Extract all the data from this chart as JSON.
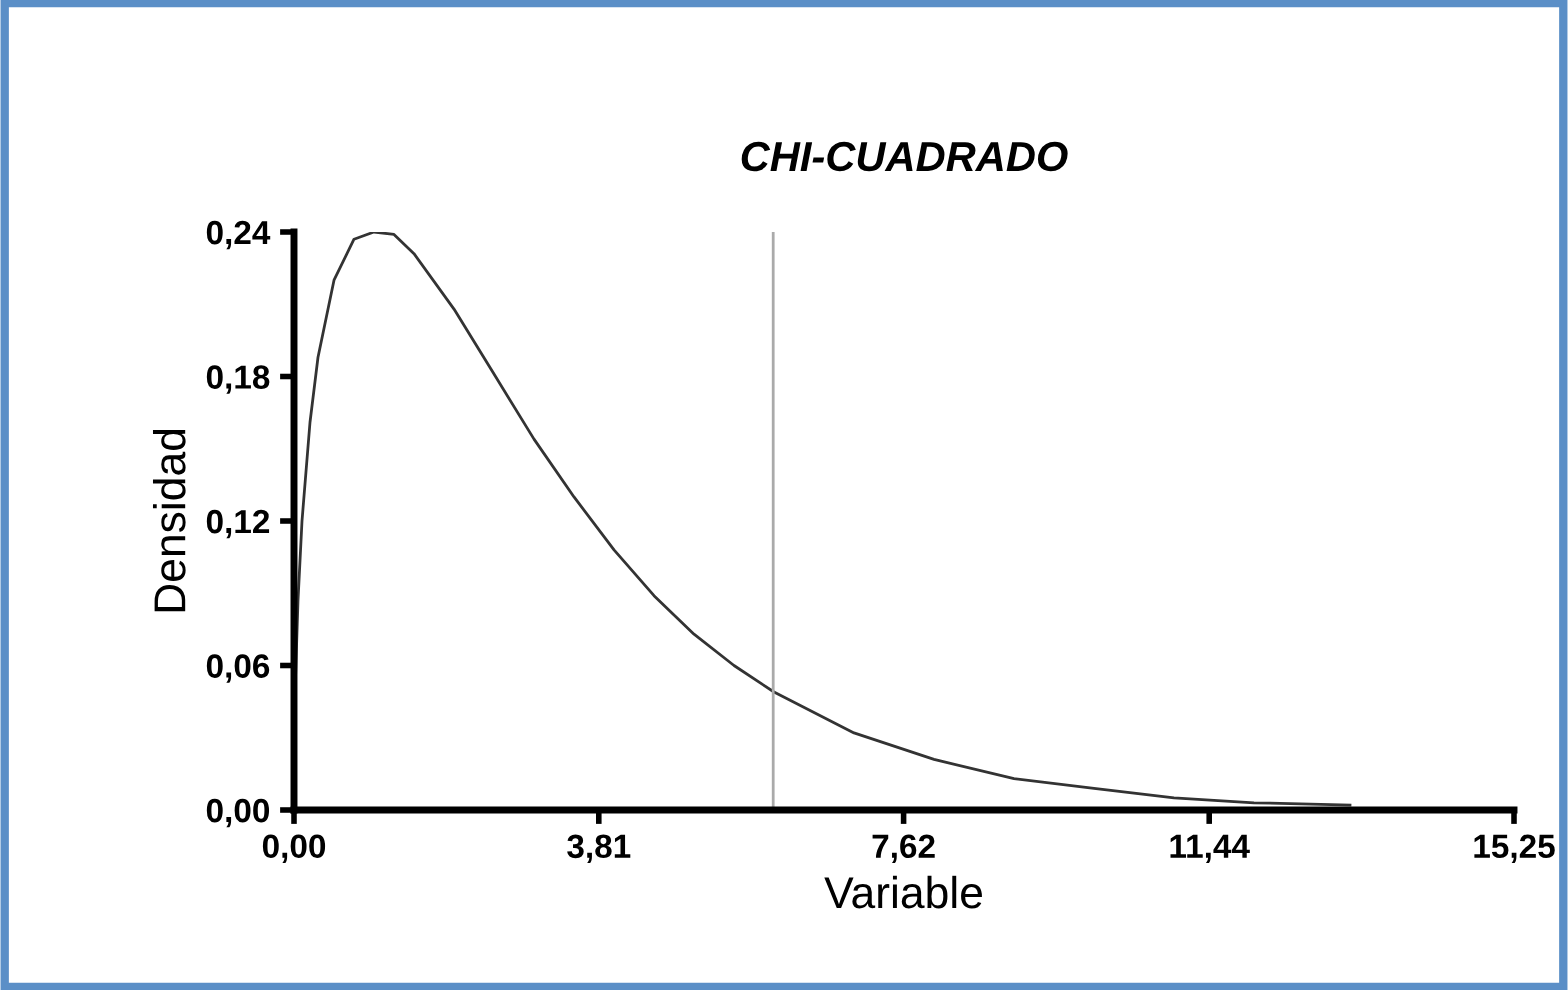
{
  "chart_data": {
    "type": "line",
    "title": "CHI-CUADRADO",
    "xlabel": "Variable",
    "ylabel": "Densidad",
    "x": [
      0.01,
      0.02,
      0.05,
      0.1,
      0.2,
      0.3,
      0.5,
      0.75,
      1.0,
      1.25,
      1.5,
      2,
      2.5,
      3,
      3.5,
      4,
      4.5,
      5,
      5.5,
      6,
      7,
      8,
      9,
      10,
      11,
      12,
      13.2
    ],
    "series": [
      {
        "color": "#333333",
        "values": [
          0.04,
          0.056,
          0.087,
          0.12,
          0.161,
          0.188,
          0.22,
          0.237,
          0.24,
          0.239,
          0.231,
          0.208,
          0.181,
          0.154,
          0.13,
          0.108,
          0.089,
          0.073,
          0.06,
          0.049,
          0.032,
          0.021,
          0.013,
          0.009,
          0.005,
          0.003,
          0.002
        ]
      }
    ],
    "xlim": [
      0,
      15.25
    ],
    "ylim": [
      0,
      0.24
    ],
    "xticks": [
      {
        "value": 0,
        "label": "0,00"
      },
      {
        "value": 3.81,
        "label": "3,81"
      },
      {
        "value": 7.62,
        "label": "7,62"
      },
      {
        "value": 11.44,
        "label": "11,44"
      },
      {
        "value": 15.25,
        "label": "15,25"
      }
    ],
    "yticks": [
      {
        "value": 0,
        "label": "0,00"
      },
      {
        "value": 0.06,
        "label": "0,06"
      },
      {
        "value": 0.12,
        "label": "0,12"
      },
      {
        "value": 0.18,
        "label": "0,18"
      },
      {
        "value": 0.24,
        "label": "0,24"
      }
    ],
    "ref_lines": [
      {
        "axis": "x",
        "value": 5.99,
        "color": "#aaaaaa"
      }
    ],
    "grid": false,
    "legend": false,
    "marker": "none",
    "line_style": "solid"
  }
}
